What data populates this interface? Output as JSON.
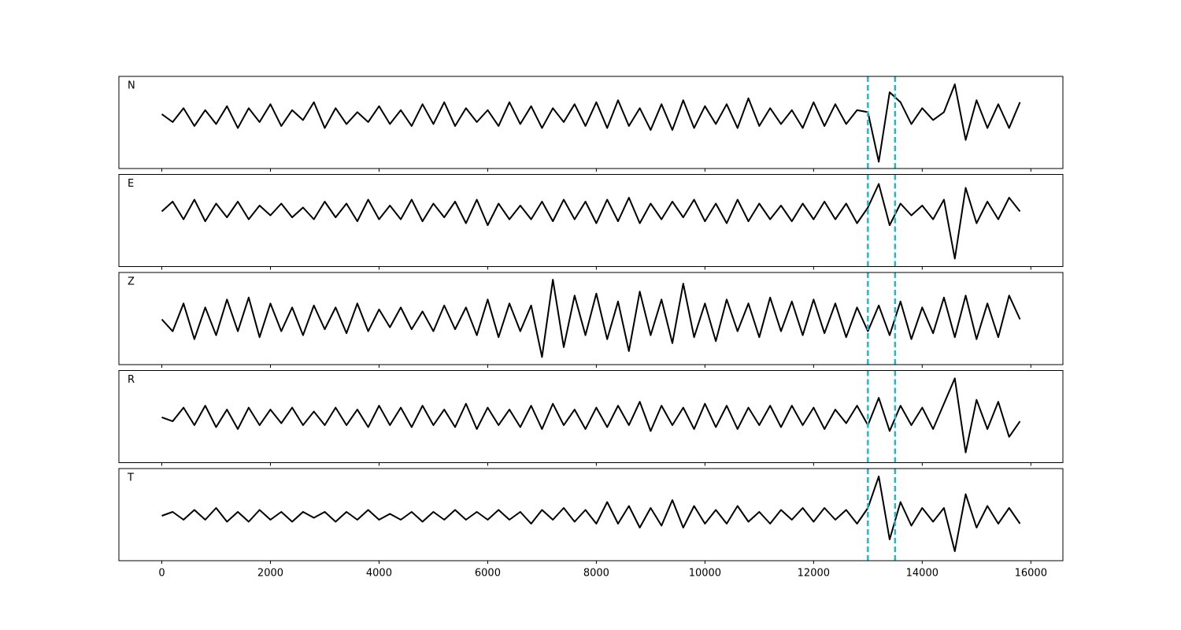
{
  "chart_data": {
    "type": "line",
    "x": [
      0,
      200,
      400,
      600,
      800,
      1000,
      1200,
      1400,
      1600,
      1800,
      2000,
      2200,
      2400,
      2600,
      2800,
      3000,
      3200,
      3400,
      3600,
      3800,
      4000,
      4200,
      4400,
      4600,
      4800,
      5000,
      5200,
      5400,
      5600,
      5800,
      6000,
      6200,
      6400,
      6600,
      6800,
      7000,
      7200,
      7400,
      7600,
      7800,
      8000,
      8200,
      8400,
      8600,
      8800,
      9000,
      9200,
      9400,
      9600,
      9800,
      10000,
      10200,
      10400,
      10600,
      10800,
      11000,
      11200,
      11400,
      11600,
      11800,
      12000,
      12200,
      12400,
      12600,
      12800,
      13000,
      13200,
      13400,
      13600,
      13800,
      14000,
      14200,
      14400,
      14600,
      14800,
      15000,
      15200,
      15400,
      15600,
      15800
    ],
    "xlim": [
      -790,
      16590
    ],
    "xticks": [
      0,
      2000,
      4000,
      6000,
      8000,
      10000,
      12000,
      14000,
      16000
    ],
    "vlines": [
      13000,
      13500
    ],
    "vline_color": "#17becf",
    "series": [
      {
        "name": "N",
        "color": "#000000",
        "ylim": [
          -1.32,
          1.0
        ],
        "values": [
          0.05,
          -0.15,
          0.2,
          -0.25,
          0.15,
          -0.2,
          0.25,
          -0.3,
          0.2,
          -0.15,
          0.3,
          -0.25,
          0.15,
          -0.1,
          0.35,
          -0.3,
          0.2,
          -0.2,
          0.1,
          -0.15,
          0.25,
          -0.2,
          0.15,
          -0.25,
          0.3,
          -0.2,
          0.35,
          -0.25,
          0.2,
          -0.15,
          0.15,
          -0.25,
          0.35,
          -0.2,
          0.25,
          -0.3,
          0.2,
          -0.15,
          0.3,
          -0.25,
          0.35,
          -0.3,
          0.4,
          -0.25,
          0.2,
          -0.35,
          0.3,
          -0.35,
          0.4,
          -0.3,
          0.25,
          -0.2,
          0.3,
          -0.3,
          0.45,
          -0.25,
          0.2,
          -0.2,
          0.15,
          -0.3,
          0.35,
          -0.25,
          0.3,
          -0.2,
          0.15,
          0.1,
          -1.15,
          0.6,
          0.35,
          -0.2,
          0.2,
          -0.1,
          0.1,
          0.8,
          -0.6,
          0.4,
          -0.3,
          0.3,
          -0.3,
          0.35
        ]
      },
      {
        "name": "E",
        "color": "#000000",
        "ylim": [
          -1.4,
          0.94
        ],
        "values": [
          0.0,
          0.25,
          -0.2,
          0.3,
          -0.25,
          0.2,
          -0.15,
          0.25,
          -0.2,
          0.15,
          -0.1,
          0.2,
          -0.15,
          0.1,
          -0.2,
          0.25,
          -0.15,
          0.2,
          -0.25,
          0.3,
          -0.2,
          0.15,
          -0.2,
          0.3,
          -0.25,
          0.2,
          -0.15,
          0.25,
          -0.3,
          0.3,
          -0.35,
          0.2,
          -0.2,
          0.15,
          -0.2,
          0.25,
          -0.25,
          0.3,
          -0.2,
          0.25,
          -0.3,
          0.3,
          -0.25,
          0.35,
          -0.3,
          0.2,
          -0.2,
          0.25,
          -0.15,
          0.3,
          -0.25,
          0.2,
          -0.3,
          0.3,
          -0.25,
          0.2,
          -0.2,
          0.15,
          -0.25,
          0.2,
          -0.2,
          0.25,
          -0.2,
          0.2,
          -0.3,
          0.1,
          0.7,
          -0.35,
          0.2,
          -0.1,
          0.15,
          -0.2,
          0.3,
          -1.2,
          0.6,
          -0.3,
          0.25,
          -0.2,
          0.35,
          0.0
        ]
      },
      {
        "name": "Z",
        "color": "#000000",
        "ylim": [
          -1.14,
          1.18
        ],
        "values": [
          0.0,
          -0.3,
          0.4,
          -0.5,
          0.3,
          -0.4,
          0.5,
          -0.3,
          0.55,
          -0.45,
          0.4,
          -0.3,
          0.3,
          -0.4,
          0.35,
          -0.25,
          0.3,
          -0.35,
          0.4,
          -0.3,
          0.25,
          -0.2,
          0.3,
          -0.25,
          0.2,
          -0.3,
          0.35,
          -0.25,
          0.3,
          -0.4,
          0.5,
          -0.45,
          0.4,
          -0.3,
          0.35,
          -0.95,
          1.0,
          -0.7,
          0.6,
          -0.4,
          0.65,
          -0.5,
          0.45,
          -0.8,
          0.7,
          -0.4,
          0.5,
          -0.6,
          0.9,
          -0.45,
          0.4,
          -0.55,
          0.5,
          -0.3,
          0.4,
          -0.45,
          0.55,
          -0.3,
          0.45,
          -0.4,
          0.5,
          -0.35,
          0.4,
          -0.45,
          0.3,
          -0.3,
          0.35,
          -0.4,
          0.45,
          -0.5,
          0.3,
          -0.35,
          0.55,
          -0.45,
          0.6,
          -0.5,
          0.4,
          -0.45,
          0.6,
          0.0
        ]
      },
      {
        "name": "R",
        "color": "#000000",
        "ylim": [
          -1.16,
          1.2
        ],
        "values": [
          0.0,
          -0.1,
          0.25,
          -0.2,
          0.3,
          -0.25,
          0.2,
          -0.3,
          0.25,
          -0.2,
          0.2,
          -0.15,
          0.25,
          -0.2,
          0.15,
          -0.2,
          0.25,
          -0.2,
          0.2,
          -0.25,
          0.3,
          -0.2,
          0.25,
          -0.25,
          0.3,
          -0.2,
          0.2,
          -0.25,
          0.35,
          -0.3,
          0.25,
          -0.2,
          0.2,
          -0.25,
          0.3,
          -0.3,
          0.35,
          -0.2,
          0.2,
          -0.3,
          0.25,
          -0.25,
          0.3,
          -0.2,
          0.4,
          -0.35,
          0.3,
          -0.2,
          0.25,
          -0.3,
          0.35,
          -0.25,
          0.3,
          -0.3,
          0.25,
          -0.2,
          0.3,
          -0.25,
          0.3,
          -0.2,
          0.25,
          -0.3,
          0.2,
          -0.15,
          0.3,
          -0.2,
          0.5,
          -0.35,
          0.3,
          -0.2,
          0.25,
          -0.3,
          0.35,
          1.0,
          -0.9,
          0.45,
          -0.3,
          0.4,
          -0.5,
          -0.1
        ]
      },
      {
        "name": "T",
        "color": "#000000",
        "ylim": [
          -1.14,
          1.2
        ],
        "values": [
          0.0,
          0.1,
          -0.1,
          0.15,
          -0.1,
          0.2,
          -0.15,
          0.1,
          -0.15,
          0.15,
          -0.1,
          0.1,
          -0.15,
          0.1,
          -0.05,
          0.1,
          -0.15,
          0.1,
          -0.1,
          0.15,
          -0.1,
          0.05,
          -0.1,
          0.1,
          -0.15,
          0.1,
          -0.1,
          0.15,
          -0.1,
          0.1,
          -0.1,
          0.15,
          -0.1,
          0.1,
          -0.2,
          0.15,
          -0.1,
          0.2,
          -0.15,
          0.15,
          -0.2,
          0.35,
          -0.2,
          0.25,
          -0.3,
          0.2,
          -0.25,
          0.4,
          -0.3,
          0.25,
          -0.2,
          0.15,
          -0.2,
          0.25,
          -0.15,
          0.1,
          -0.2,
          0.15,
          -0.1,
          0.2,
          -0.15,
          0.2,
          -0.1,
          0.15,
          -0.2,
          0.2,
          1.0,
          -0.6,
          0.35,
          -0.25,
          0.2,
          -0.15,
          0.2,
          -0.9,
          0.55,
          -0.3,
          0.25,
          -0.2,
          0.2,
          -0.2
        ]
      }
    ]
  }
}
